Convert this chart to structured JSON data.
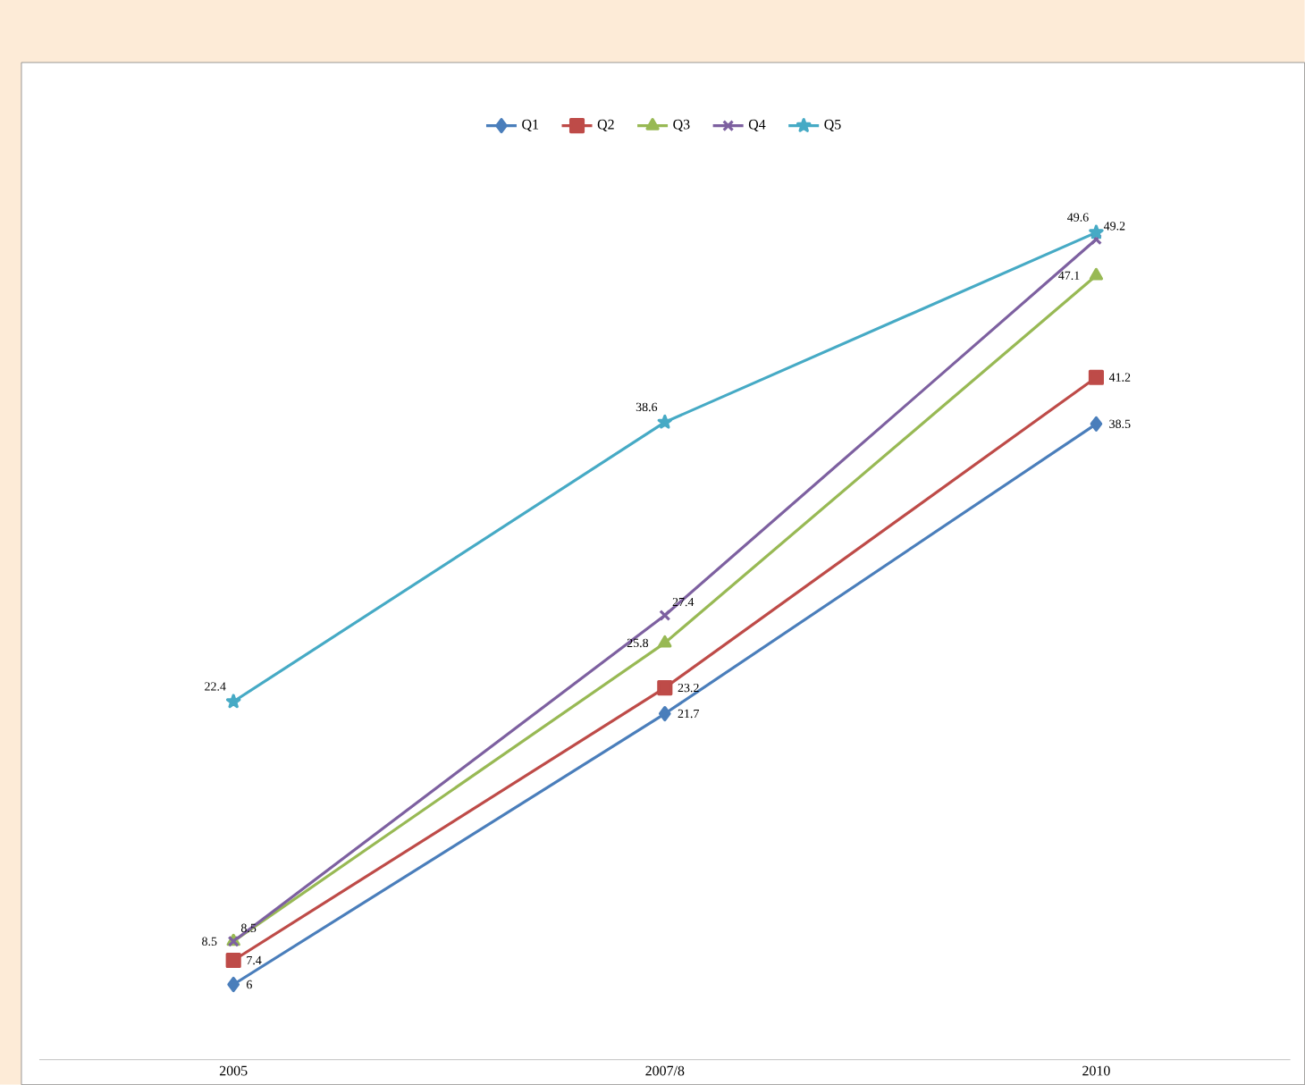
{
  "chart_data": {
    "type": "line",
    "categories": [
      "2005",
      "2007/8",
      "2010"
    ],
    "series": [
      {
        "name": "Q1",
        "color": "#4a7ebb",
        "marker": "diamond",
        "values": [
          6,
          21.7,
          38.5
        ]
      },
      {
        "name": "Q2",
        "color": "#be4b48",
        "marker": "square",
        "values": [
          7.4,
          23.2,
          41.2
        ]
      },
      {
        "name": "Q3",
        "color": "#98b954",
        "marker": "triangle",
        "values": [
          8.5,
          25.8,
          47.1
        ]
      },
      {
        "name": "Q4",
        "color": "#7d60a0",
        "marker": "cross",
        "values": [
          8.5,
          27.4,
          49.2
        ]
      },
      {
        "name": "Q5",
        "color": "#46aac5",
        "marker": "star",
        "values": [
          22.4,
          38.6,
          49.6
        ]
      }
    ],
    "data_labels": true,
    "legend": "top",
    "grid": false,
    "line_style": "solid"
  }
}
